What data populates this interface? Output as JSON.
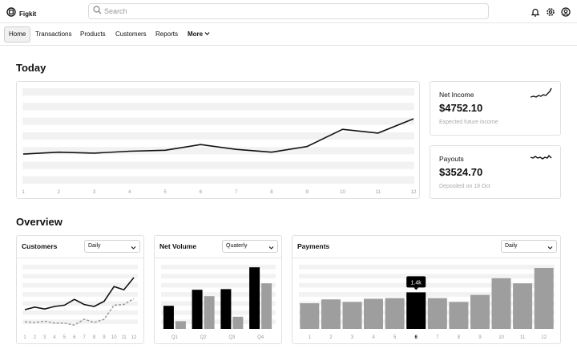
{
  "app": {
    "name": "Figkit"
  },
  "search": {
    "placeholder": "Search"
  },
  "nav": {
    "items": [
      {
        "label": "Home",
        "active": true
      },
      {
        "label": "Transactions"
      },
      {
        "label": "Products"
      },
      {
        "label": "Customers"
      },
      {
        "label": "Reports"
      }
    ],
    "more_label": "More"
  },
  "today": {
    "title": "Today",
    "chart_data": {
      "type": "line",
      "x": [
        "1",
        "2",
        "3",
        "4",
        "5",
        "6",
        "7",
        "8",
        "9",
        "10",
        "11",
        "12"
      ],
      "values": [
        31,
        33,
        32,
        34,
        35,
        41,
        36,
        33,
        39,
        57,
        53,
        68
      ],
      "ylim": [
        0,
        100
      ],
      "grid": true
    },
    "net_income": {
      "label": "Net Income",
      "value": "$4752.10",
      "sub": "Expected future income"
    },
    "payouts": {
      "label": "Payouts",
      "value": "$3524.70",
      "sub": "Deposited on 18 Oct"
    }
  },
  "overview": {
    "title": "Overview",
    "customers": {
      "title": "Customers",
      "select": "Daily",
      "chart_data": {
        "type": "line",
        "x": [
          "1",
          "2",
          "3",
          "4",
          "5",
          "6",
          "7",
          "8",
          "9",
          "10",
          "11",
          "12"
        ],
        "series": [
          {
            "style": "solid",
            "values": [
              30,
              34,
              31,
              35,
              37,
              46,
              38,
              35,
              43,
              66,
              61,
              80
            ]
          },
          {
            "style": "dashed",
            "values": [
              11,
              10,
              12,
              9,
              9,
              6,
              15,
              10,
              15,
              37,
              38,
              47
            ]
          }
        ],
        "ylim": [
          0,
          100
        ]
      }
    },
    "net_volume": {
      "title": "Net Volume",
      "select": "Quaterly",
      "chart_data": {
        "type": "bar",
        "categories": [
          "Q1",
          "Q2",
          "Q3",
          "Q4"
        ],
        "series": [
          {
            "style": "black",
            "values": [
              36,
              61,
              62,
              96
            ]
          },
          {
            "style": "gray",
            "values": [
              12,
              51,
              19,
              71
            ]
          }
        ],
        "ylim": [
          0,
          100
        ]
      }
    },
    "payments": {
      "title": "Payments",
      "select": "Daily",
      "tooltip": "1.4k",
      "chart_data": {
        "type": "bar",
        "categories": [
          "1",
          "2",
          "3",
          "4",
          "5",
          "6",
          "7",
          "8",
          "9",
          "10",
          "11",
          "12"
        ],
        "values": [
          40,
          46,
          42,
          47,
          48,
          57,
          48,
          42,
          53,
          79,
          71,
          95
        ],
        "highlight_index": 5,
        "ylim": [
          0,
          100
        ]
      }
    }
  },
  "colors": {
    "accent": "#000000",
    "bar_gray": "#9e9e9e",
    "grid": "#f2f2f2",
    "border": "#e0e0e0"
  }
}
